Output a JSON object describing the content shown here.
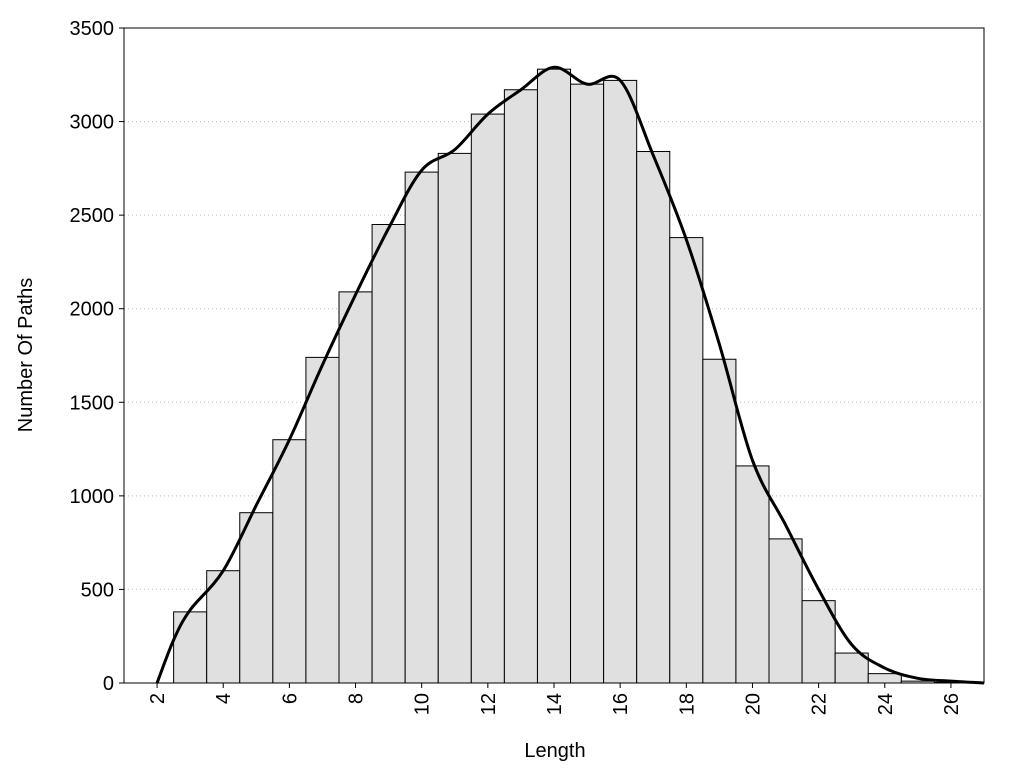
{
  "chart_data": {
    "type": "histogram",
    "xlabel": "Length",
    "ylabel": "Number Of Paths",
    "bins": [
      2.5,
      3.5,
      4.5,
      5.5,
      6.5,
      7.5,
      8.5,
      9.5,
      10.5,
      11.5,
      12.5,
      13.5,
      14.5,
      15.5,
      16.5,
      17.5,
      18.5,
      19.5,
      20.5,
      21.5,
      22.5,
      23.5,
      24.5,
      25.5,
      26.5
    ],
    "values": [
      380,
      600,
      910,
      1300,
      1740,
      2090,
      2450,
      2730,
      2830,
      3040,
      3170,
      3280,
      3200,
      3220,
      2840,
      2380,
      1730,
      1160,
      770,
      440,
      160,
      50,
      10,
      3
    ],
    "color": "#e0e0e0",
    "curve": {
      "x": [
        2,
        2.5,
        3,
        4,
        5,
        6,
        7,
        8,
        9,
        10,
        11,
        12,
        13,
        14,
        15,
        16,
        17,
        18,
        19,
        20,
        21,
        22,
        23,
        24,
        25,
        26,
        27
      ],
      "values": [
        0,
        230,
        390,
        600,
        950,
        1300,
        1700,
        2075,
        2430,
        2740,
        2850,
        3040,
        3170,
        3290,
        3200,
        3220,
        2820,
        2370,
        1810,
        1190,
        845,
        500,
        205,
        80,
        25,
        10,
        0
      ],
      "color": "#000000"
    },
    "xlim": [
      1,
      27
    ],
    "xticks": [
      2,
      4,
      6,
      8,
      10,
      12,
      14,
      16,
      18,
      20,
      22,
      24,
      26
    ],
    "ylim": [
      0,
      3500
    ],
    "yticks": [
      0,
      500,
      1000,
      1500,
      2000,
      2500,
      3000,
      3500
    ],
    "grid": true
  }
}
